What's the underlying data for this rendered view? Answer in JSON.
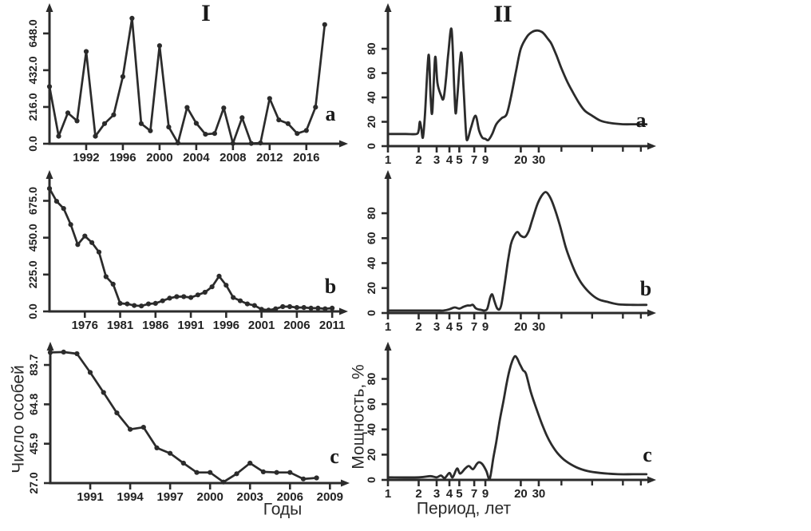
{
  "figure": {
    "columns": [
      {
        "id": "I",
        "title": "I"
      },
      {
        "id": "II",
        "title": "II"
      }
    ],
    "ink_color": "#2b2b2b",
    "background": "#ffffff"
  },
  "chart_data": [
    {
      "id": "Ia",
      "column": "I",
      "panel_label": "a",
      "type": "line",
      "x_scale": "linear",
      "markers": true,
      "xlabel": "",
      "ylabel": "",
      "xlim": [
        1988,
        2019.5
      ],
      "ylim": [
        0,
        760
      ],
      "x_ticks": [
        {
          "v": 1992,
          "label": "1992"
        },
        {
          "v": 1996,
          "label": "1996"
        },
        {
          "v": 2000,
          "label": "2000"
        },
        {
          "v": 2004,
          "label": "2004"
        },
        {
          "v": 2008,
          "label": "2008"
        },
        {
          "v": 2012,
          "label": "2012"
        },
        {
          "v": 2016,
          "label": "2016"
        }
      ],
      "y_ticks": [
        {
          "v": 0,
          "label": "0.0"
        },
        {
          "v": 216,
          "label": "216.0"
        },
        {
          "v": 432,
          "label": "432.0"
        },
        {
          "v": 648,
          "label": "648.0"
        }
      ],
      "x": [
        1988,
        1989,
        1990,
        1991,
        1992,
        1993,
        1994,
        1995,
        1996,
        1997,
        1998,
        1999,
        2000,
        2001,
        2002,
        2003,
        2004,
        2005,
        2006,
        2007,
        2008,
        2009,
        2010,
        2011,
        2012,
        2013,
        2014,
        2015,
        2016,
        2017,
        2018
      ],
      "values": [
        336,
        44,
        181,
        134,
        542,
        44,
        118,
        170,
        394,
        737,
        118,
        76,
        576,
        98,
        4,
        213,
        120,
        56,
        60,
        210,
        2,
        153,
        2,
        4,
        266,
        140,
        118,
        60,
        78,
        215,
        700
      ]
    },
    {
      "id": "Ib",
      "column": "I",
      "panel_label": "b",
      "type": "line",
      "x_scale": "linear",
      "markers": true,
      "xlabel": "",
      "ylabel": "",
      "xlim": [
        1971,
        2012
      ],
      "ylim": [
        0,
        770
      ],
      "x_ticks": [
        {
          "v": 1976,
          "label": "1976"
        },
        {
          "v": 1981,
          "label": "1981"
        },
        {
          "v": 1986,
          "label": "1986"
        },
        {
          "v": 1991,
          "label": "1991"
        },
        {
          "v": 1996,
          "label": "1996"
        },
        {
          "v": 2001,
          "label": "2001"
        },
        {
          "v": 2006,
          "label": "2006"
        },
        {
          "v": 2011,
          "label": "2011"
        }
      ],
      "y_ticks": [
        {
          "v": 0,
          "label": "0.0"
        },
        {
          "v": 225,
          "label": "225.0"
        },
        {
          "v": 450,
          "label": "450.0"
        },
        {
          "v": 675,
          "label": "675.0"
        }
      ],
      "x": [
        1971,
        1972,
        1973,
        1974,
        1975,
        1976,
        1977,
        1978,
        1979,
        1980,
        1981,
        1982,
        1983,
        1984,
        1985,
        1986,
        1987,
        1988,
        1989,
        1990,
        1991,
        1992,
        1993,
        1994,
        1995,
        1996,
        1997,
        1998,
        1999,
        2000,
        2001,
        2002,
        2003,
        2004,
        2005,
        2006,
        2007,
        2008,
        2009,
        2010,
        2011
      ],
      "values": [
        750,
        672,
        628,
        530,
        408,
        460,
        420,
        362,
        212,
        166,
        49,
        46,
        36,
        33,
        46,
        49,
        65,
        81,
        90,
        90,
        85,
        101,
        117,
        150,
        215,
        160,
        85,
        65,
        46,
        36,
        13,
        8,
        16,
        29,
        29,
        24,
        24,
        20,
        20,
        16,
        20
      ]
    },
    {
      "id": "Ic",
      "column": "I",
      "panel_label": "c",
      "type": "line",
      "x_scale": "linear",
      "markers": true,
      "xlabel": "Годы",
      "ylabel": "Число особей",
      "xlim": [
        1988,
        2009.7
      ],
      "ylim": [
        27,
        91
      ],
      "x_ticks": [
        {
          "v": 1991,
          "label": "1991"
        },
        {
          "v": 1994,
          "label": "1994"
        },
        {
          "v": 1997,
          "label": "1997"
        },
        {
          "v": 2000,
          "label": "2000"
        },
        {
          "v": 2003,
          "label": "2003"
        },
        {
          "v": 2006,
          "label": "2006"
        },
        {
          "v": 2009,
          "label": "2009"
        }
      ],
      "y_ticks": [
        {
          "v": 27,
          "label": "27.0"
        },
        {
          "v": 45.9,
          "label": "45.9"
        },
        {
          "v": 64.8,
          "label": "64.8"
        },
        {
          "v": 83.7,
          "label": "83.7"
        }
      ],
      "x": [
        1988,
        1989,
        1990,
        1991,
        1992,
        1993,
        1994,
        1995,
        1996,
        1997,
        1998,
        1999,
        2000,
        2001,
        2002,
        2003,
        2004,
        2005,
        2006,
        2007,
        2008
      ],
      "values": [
        89.7,
        89.9,
        89.1,
        80.1,
        70.5,
        60.7,
        52.8,
        53.8,
        43.9,
        41.3,
        36.6,
        32.1,
        32.1,
        27.5,
        31.5,
        36.6,
        32.4,
        32.1,
        32.1,
        29.0,
        29.5
      ]
    },
    {
      "id": "IIa",
      "column": "II",
      "panel_label": "a",
      "type": "line",
      "x_scale": "log",
      "markers": false,
      "xlabel": "",
      "ylabel": "",
      "xlim": [
        1,
        360
      ],
      "ylim": [
        0,
        105
      ],
      "x_ticks": [
        {
          "v": 1,
          "label": "1"
        },
        {
          "v": 2,
          "label": "2"
        },
        {
          "v": 3,
          "label": "3"
        },
        {
          "v": 4,
          "label": "4"
        },
        {
          "v": 5,
          "label": "5"
        },
        {
          "v": 7,
          "label": "7"
        },
        {
          "v": 9,
          "label": "9"
        },
        {
          "v": 20,
          "label": "20"
        },
        {
          "v": 30,
          "label": "30"
        }
      ],
      "x_minor_ticks": [
        50,
        100,
        200,
        300
      ],
      "y_ticks": [
        {
          "v": 0,
          "label": "0"
        },
        {
          "v": 20,
          "label": "20"
        },
        {
          "v": 40,
          "label": "40"
        },
        {
          "v": 60,
          "label": "60"
        },
        {
          "v": 80,
          "label": "80"
        }
      ],
      "points": [
        [
          1,
          10
        ],
        [
          1.5,
          10
        ],
        [
          1.9,
          10
        ],
        [
          2.0,
          13
        ],
        [
          2.05,
          20
        ],
        [
          2.12,
          15
        ],
        [
          2.2,
          7
        ],
        [
          2.3,
          25
        ],
        [
          2.5,
          75
        ],
        [
          2.62,
          40
        ],
        [
          2.72,
          28
        ],
        [
          2.9,
          73
        ],
        [
          3.05,
          52
        ],
        [
          3.3,
          42
        ],
        [
          3.5,
          39
        ],
        [
          3.7,
          55
        ],
        [
          3.9,
          76
        ],
        [
          4.2,
          96
        ],
        [
          4.45,
          50
        ],
        [
          4.6,
          27
        ],
        [
          4.8,
          42
        ],
        [
          5.2,
          77
        ],
        [
          5.5,
          48
        ],
        [
          5.8,
          12
        ],
        [
          6.0,
          5
        ],
        [
          6.5,
          15
        ],
        [
          7.2,
          25
        ],
        [
          7.8,
          13
        ],
        [
          8.4,
          7
        ],
        [
          9.0,
          6
        ],
        [
          9.6,
          5
        ],
        [
          10.5,
          10
        ],
        [
          11.5,
          18
        ],
        [
          13,
          23
        ],
        [
          14.5,
          26
        ],
        [
          16,
          40
        ],
        [
          18,
          62
        ],
        [
          20,
          80
        ],
        [
          23,
          90
        ],
        [
          26,
          94
        ],
        [
          29,
          95
        ],
        [
          32,
          94
        ],
        [
          34,
          92
        ],
        [
          37,
          88
        ],
        [
          40,
          84
        ],
        [
          45,
          74
        ],
        [
          50,
          64
        ],
        [
          57,
          53
        ],
        [
          65,
          44
        ],
        [
          75,
          35
        ],
        [
          85,
          29
        ],
        [
          100,
          25
        ],
        [
          120,
          21
        ],
        [
          150,
          19
        ],
        [
          200,
          18
        ],
        [
          260,
          18
        ],
        [
          340,
          18
        ]
      ]
    },
    {
      "id": "IIb",
      "column": "II",
      "panel_label": "b",
      "type": "line",
      "x_scale": "log",
      "markers": false,
      "xlabel": "",
      "ylabel": "",
      "xlim": [
        1,
        360
      ],
      "ylim": [
        0,
        105
      ],
      "x_ticks": [
        {
          "v": 1,
          "label": "1"
        },
        {
          "v": 2,
          "label": "2"
        },
        {
          "v": 3,
          "label": "3"
        },
        {
          "v": 4,
          "label": "4"
        },
        {
          "v": 5,
          "label": "5"
        },
        {
          "v": 7,
          "label": "7"
        },
        {
          "v": 9,
          "label": "9"
        },
        {
          "v": 20,
          "label": "20"
        },
        {
          "v": 30,
          "label": "30"
        }
      ],
      "x_minor_ticks": [
        50,
        100,
        200,
        300
      ],
      "y_ticks": [
        {
          "v": 0,
          "label": "0"
        },
        {
          "v": 20,
          "label": "20"
        },
        {
          "v": 40,
          "label": "40"
        },
        {
          "v": 60,
          "label": "60"
        },
        {
          "v": 80,
          "label": "80"
        }
      ],
      "points": [
        [
          1,
          2
        ],
        [
          2,
          2
        ],
        [
          3,
          2
        ],
        [
          3.5,
          2
        ],
        [
          4,
          3
        ],
        [
          4.5,
          4.5
        ],
        [
          5,
          3.5
        ],
        [
          5.5,
          5
        ],
        [
          6,
          6
        ],
        [
          6.4,
          6
        ],
        [
          6.8,
          6.5
        ],
        [
          7.2,
          4
        ],
        [
          7.6,
          3
        ],
        [
          8.2,
          2.5
        ],
        [
          8.8,
          2
        ],
        [
          9.4,
          3.5
        ],
        [
          10,
          12
        ],
        [
          10.5,
          15
        ],
        [
          11,
          10
        ],
        [
          11.7,
          4
        ],
        [
          12.4,
          3
        ],
        [
          13,
          8
        ],
        [
          14,
          25
        ],
        [
          15,
          42
        ],
        [
          16,
          55
        ],
        [
          17,
          61
        ],
        [
          18.5,
          65
        ],
        [
          20,
          62
        ],
        [
          22,
          61
        ],
        [
          24,
          66
        ],
        [
          26,
          75
        ],
        [
          29,
          87
        ],
        [
          32,
          94
        ],
        [
          35,
          97
        ],
        [
          38,
          94
        ],
        [
          42,
          86
        ],
        [
          48,
          71
        ],
        [
          55,
          53
        ],
        [
          62,
          41
        ],
        [
          70,
          31
        ],
        [
          80,
          23
        ],
        [
          95,
          16
        ],
        [
          115,
          11
        ],
        [
          140,
          9
        ],
        [
          180,
          7
        ],
        [
          250,
          6.5
        ],
        [
          340,
          6.5
        ]
      ]
    },
    {
      "id": "IIc",
      "column": "II",
      "panel_label": "c",
      "type": "line",
      "x_scale": "log",
      "markers": false,
      "xlabel": "Период, лет",
      "ylabel": "Мощность, %",
      "xlim": [
        1,
        360
      ],
      "ylim": [
        0,
        105
      ],
      "x_ticks": [
        {
          "v": 1,
          "label": "1"
        },
        {
          "v": 2,
          "label": "2"
        },
        {
          "v": 3,
          "label": "3"
        },
        {
          "v": 4,
          "label": "4"
        },
        {
          "v": 5,
          "label": "5"
        },
        {
          "v": 7,
          "label": "7"
        },
        {
          "v": 9,
          "label": "9"
        },
        {
          "v": 20,
          "label": "20"
        },
        {
          "v": 30,
          "label": "30"
        }
      ],
      "x_minor_ticks": [
        50,
        100,
        200,
        300
      ],
      "y_ticks": [
        {
          "v": 0,
          "label": "0"
        },
        {
          "v": 20,
          "label": "20"
        },
        {
          "v": 40,
          "label": "40"
        },
        {
          "v": 60,
          "label": "60"
        },
        {
          "v": 80,
          "label": "80"
        }
      ],
      "points": [
        [
          1,
          2
        ],
        [
          2,
          2
        ],
        [
          2.6,
          3
        ],
        [
          3,
          2
        ],
        [
          3.3,
          3.5
        ],
        [
          3.6,
          1.5
        ],
        [
          4,
          5.5
        ],
        [
          4.3,
          2
        ],
        [
          4.75,
          9
        ],
        [
          5.1,
          5
        ],
        [
          5.7,
          9
        ],
        [
          6.2,
          11
        ],
        [
          6.8,
          8.5
        ],
        [
          7.4,
          12.5
        ],
        [
          7.8,
          14
        ],
        [
          8.4,
          12.5
        ],
        [
          9.2,
          7
        ],
        [
          9.9,
          0.5
        ],
        [
          10.8,
          18
        ],
        [
          11.5,
          30
        ],
        [
          12.5,
          48
        ],
        [
          13.5,
          62
        ],
        [
          14.5,
          76
        ],
        [
          15.5,
          87
        ],
        [
          16.5,
          94
        ],
        [
          17.5,
          98
        ],
        [
          18.5,
          96
        ],
        [
          19.5,
          92
        ],
        [
          21,
          87
        ],
        [
          22.5,
          84
        ],
        [
          25,
          70
        ],
        [
          28,
          58
        ],
        [
          32,
          45
        ],
        [
          36,
          35
        ],
        [
          40,
          28
        ],
        [
          46,
          21
        ],
        [
          55,
          15
        ],
        [
          70,
          10
        ],
        [
          90,
          7
        ],
        [
          120,
          5.5
        ],
        [
          180,
          4.5
        ],
        [
          250,
          4.5
        ],
        [
          340,
          4.5
        ]
      ]
    }
  ]
}
